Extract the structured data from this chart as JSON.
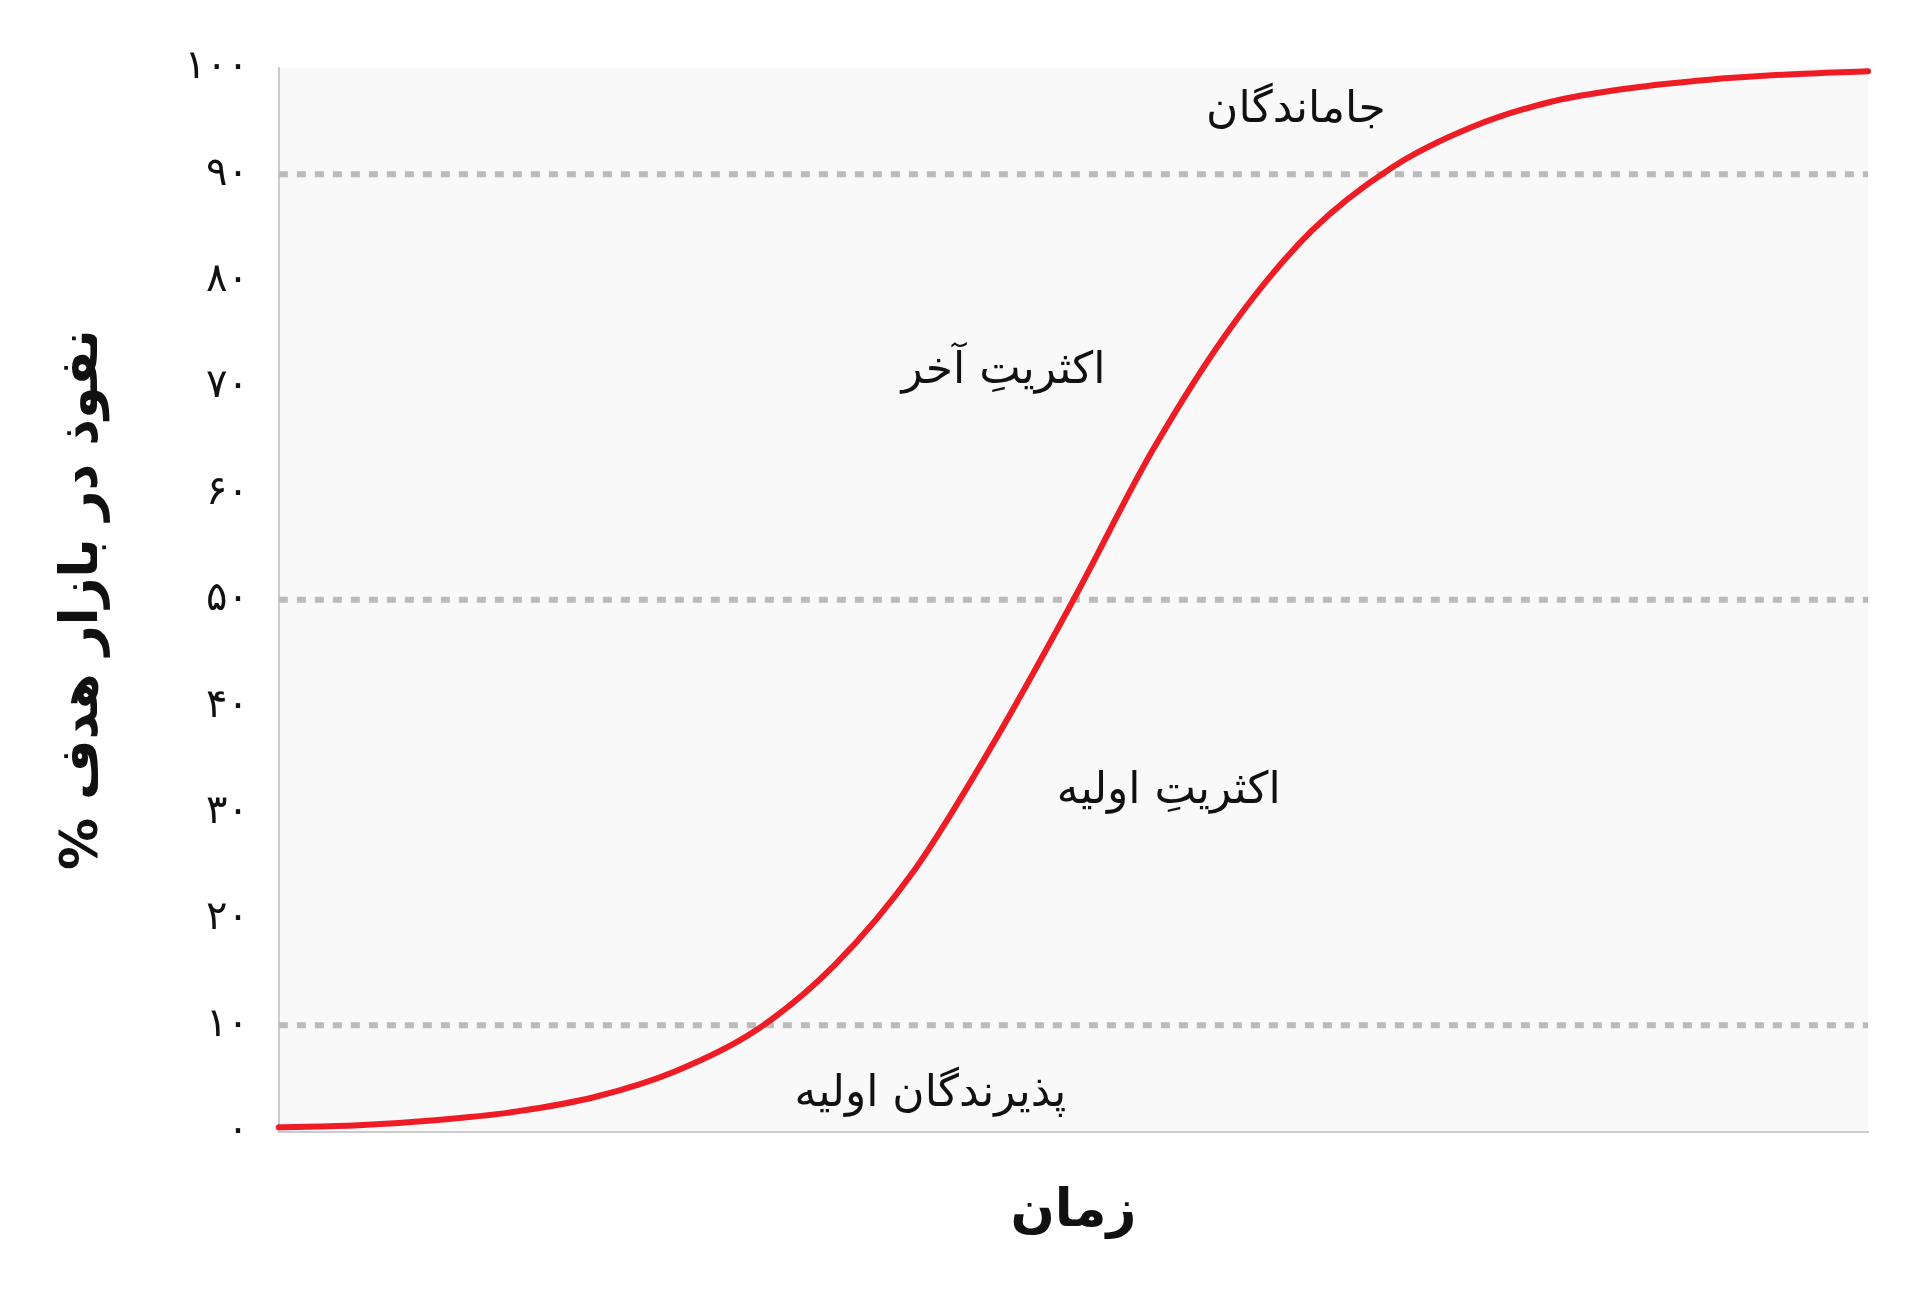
{
  "chart_data": {
    "type": "line",
    "xlabel": "زمان",
    "ylabel": "% نفوذ در بازار هدف",
    "categories": [
      null,
      null,
      null,
      null,
      null,
      null,
      null,
      null,
      null,
      null,
      null,
      null,
      null,
      null,
      null,
      null,
      null,
      null,
      null,
      null,
      null
    ],
    "series": [
      {
        "color": "#ee1c25",
        "values": [
          0.4,
          0.6,
          1.1,
          1.9,
          3.3,
          5.7,
          9.5,
          15.7,
          24.6,
          36.6,
          50,
          64.1,
          75.8,
          84.7,
          90.6,
          94.4,
          96.8,
          98.1,
          98.9,
          99.4,
          99.7
        ]
      }
    ],
    "ylim": [
      0,
      100
    ],
    "yticks": [
      {
        "value": 0,
        "label": "۰"
      },
      {
        "value": 10,
        "label": "۱۰"
      },
      {
        "value": 20,
        "label": "۲۰"
      },
      {
        "value": 30,
        "label": "۳۰"
      },
      {
        "value": 40,
        "label": "۴۰"
      },
      {
        "value": 50,
        "label": "۵۰"
      },
      {
        "value": 60,
        "label": "۶۰"
      },
      {
        "value": 70,
        "label": "۷۰"
      },
      {
        "value": 80,
        "label": "۸۰"
      },
      {
        "value": 90,
        "label": "۹۰"
      },
      {
        "value": 100,
        "label": "۱۰۰"
      }
    ],
    "tick_labels": "y",
    "grid": false,
    "legend": false,
    "marker": "none",
    "line_style": "solid",
    "ref_lines": [
      {
        "axis": "y",
        "value": 10,
        "color": "#bbbbbb",
        "line_style": "dotted"
      },
      {
        "axis": "y",
        "value": 50,
        "color": "#bbbbbb",
        "line_style": "dotted"
      },
      {
        "axis": "y",
        "value": 90,
        "color": "#bbbbbb",
        "line_style": "dotted"
      }
    ],
    "annotations": [
      "جاماندگان",
      "اکثریتِ آخر",
      "اکثریتِ اولیه",
      "پذیرندگان اولیه"
    ]
  }
}
